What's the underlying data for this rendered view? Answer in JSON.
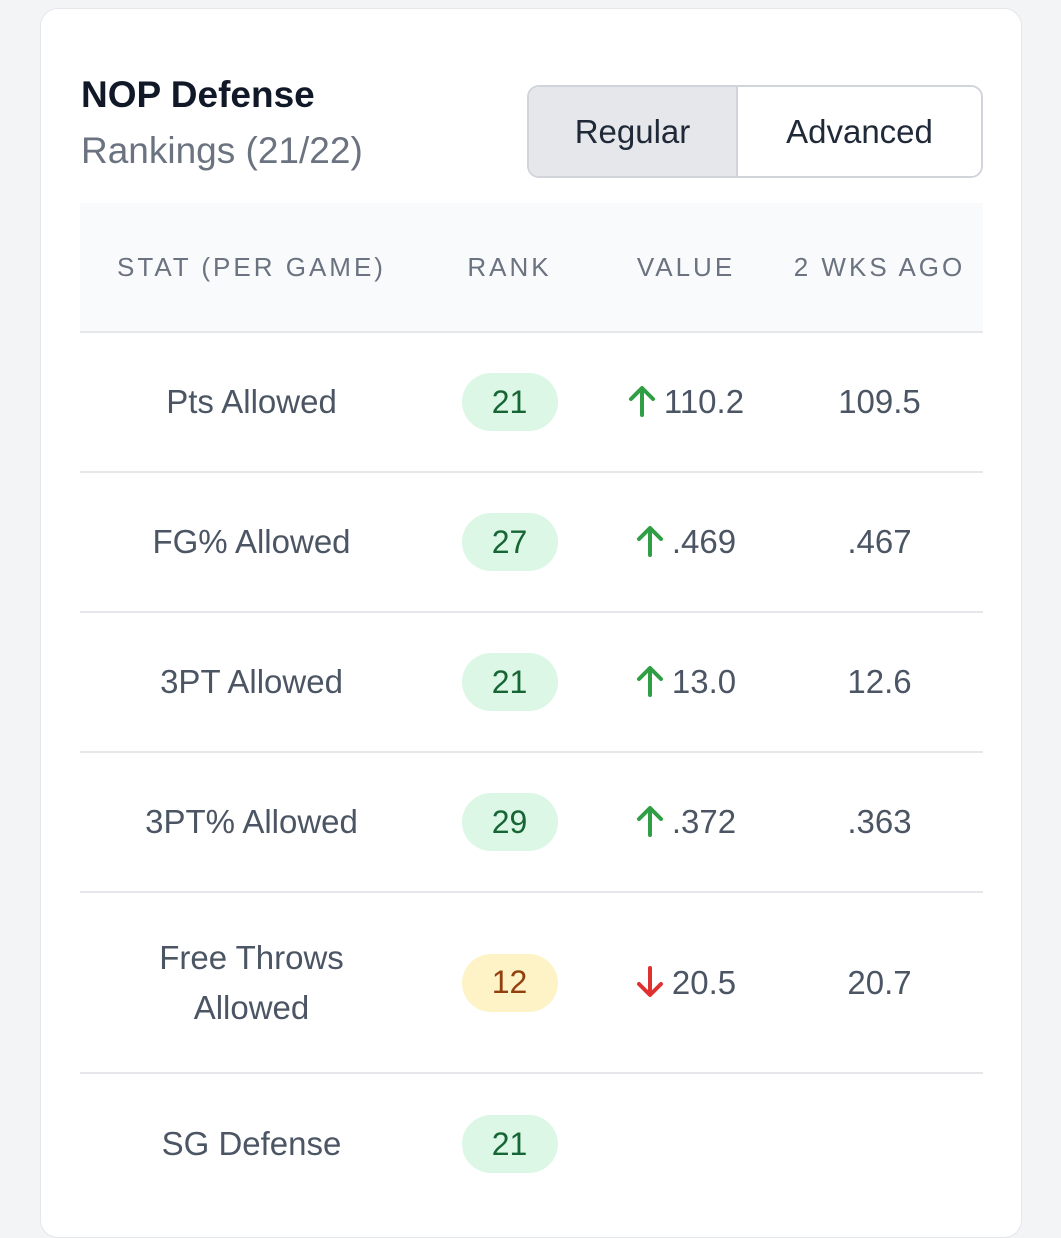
{
  "header": {
    "title": "NOP Defense",
    "subtitle": "Rankings (21/22)"
  },
  "toggle": {
    "regular_label": "Regular",
    "advanced_label": "Advanced",
    "selected": "Regular"
  },
  "table": {
    "columns": [
      "STAT (PER GAME)",
      "RANK",
      "VALUE",
      "2 WKS AGO"
    ],
    "rows": [
      {
        "stat": "Pts Allowed",
        "rank": "21",
        "rank_color": "green",
        "trend": "up",
        "value": "110.2",
        "prev": "109.5"
      },
      {
        "stat": "FG% Allowed",
        "rank": "27",
        "rank_color": "green",
        "trend": "up",
        "value": ".469",
        "prev": ".467"
      },
      {
        "stat": "3PT Allowed",
        "rank": "21",
        "rank_color": "green",
        "trend": "up",
        "value": "13.0",
        "prev": "12.6"
      },
      {
        "stat": "3PT% Allowed",
        "rank": "29",
        "rank_color": "green",
        "trend": "up",
        "value": ".372",
        "prev": ".363"
      },
      {
        "stat": "Free Throws Allowed",
        "rank": "12",
        "rank_color": "yellow",
        "trend": "down",
        "value": "20.5",
        "prev": "20.7"
      },
      {
        "stat": "SG Defense",
        "rank": "21",
        "rank_color": "green",
        "trend": "",
        "value": "",
        "prev": ""
      }
    ]
  },
  "colors": {
    "badge_green_bg": "#dcf7e6",
    "badge_green_text": "#166534",
    "badge_yellow_bg": "#fdf3c7",
    "badge_yellow_text": "#92400e",
    "arrow_up": "#2f9e44",
    "arrow_down": "#e03131"
  },
  "icons": {
    "up": "arrow-up-icon",
    "down": "arrow-down-icon"
  }
}
